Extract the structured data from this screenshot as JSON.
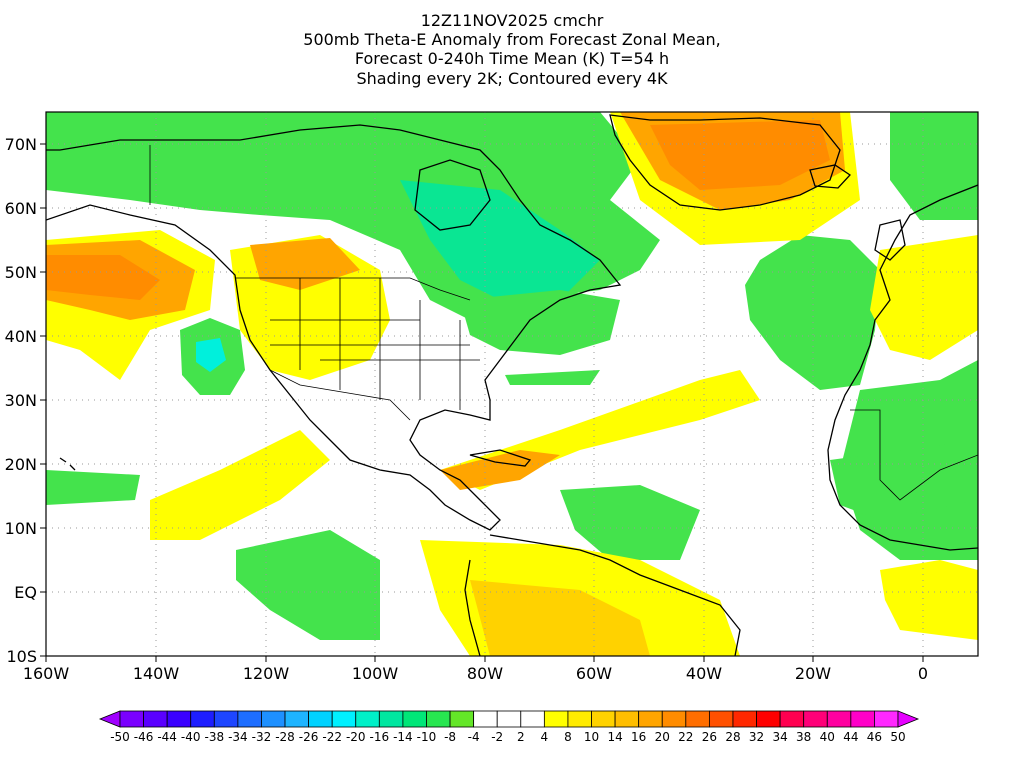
{
  "title": {
    "line1": "12Z11NOV2025 cmchr",
    "line2": "500mb Theta-E Anomaly from Forecast Zonal Mean,",
    "line3": "Forecast 0-240h Time Mean (K) T=54 h",
    "line4": "Shading every 2K; Contoured every 4K"
  },
  "axes": {
    "lon_labels": [
      "160W",
      "140W",
      "120W",
      "100W",
      "80W",
      "60W",
      "40W",
      "20W",
      "0"
    ],
    "lon_values": [
      -160,
      -140,
      -120,
      -100,
      -80,
      -60,
      -40,
      -20,
      0
    ],
    "lat_labels": [
      "70N",
      "60N",
      "50N",
      "40N",
      "30N",
      "20N",
      "10N",
      "EQ",
      "10S"
    ],
    "lat_values": [
      70,
      60,
      50,
      40,
      30,
      20,
      10,
      0,
      -10
    ],
    "lon_range": [
      -160,
      10
    ],
    "lat_range": [
      -10,
      75
    ],
    "grid": "dotted"
  },
  "colorbar": {
    "labels": [
      "-50",
      "-46",
      "-44",
      "-40",
      "-38",
      "-34",
      "-32",
      "-28",
      "-26",
      "-22",
      "-20",
      "-16",
      "-14",
      "-10",
      "-8",
      "-4",
      "-2",
      "2",
      "4",
      "8",
      "10",
      "14",
      "16",
      "20",
      "22",
      "26",
      "28",
      "32",
      "34",
      "38",
      "40",
      "44",
      "46",
      "50"
    ],
    "colors": [
      "#a000ff",
      "#7a00ff",
      "#5a00ff",
      "#3a00ff",
      "#1e1eff",
      "#1e46ff",
      "#1e6eff",
      "#1e90ff",
      "#1eb4ff",
      "#00d2ff",
      "#00f0ff",
      "#00f0c8",
      "#00e6a0",
      "#00e678",
      "#28e650",
      "#64e628",
      "#ffffff",
      "#ffffff",
      "#ffffff",
      "#ffff00",
      "#ffeb00",
      "#ffd200",
      "#ffbe00",
      "#ffa500",
      "#ff8c00",
      "#ff6e00",
      "#ff5000",
      "#ff2800",
      "#ff0000",
      "#ff0050",
      "#ff0078",
      "#ff00a0",
      "#ff00c8",
      "#ff28ff",
      "#e600ff"
    ]
  },
  "legend_colors": {
    "green": "#44e34c",
    "teal": "#00e6a0",
    "cyan": "#00f0dc",
    "yellow": "#ffff00",
    "gold": "#ffd200",
    "orange": "#ffa500",
    "dark_orange": "#ff8c00",
    "land_outline": "#000000"
  }
}
